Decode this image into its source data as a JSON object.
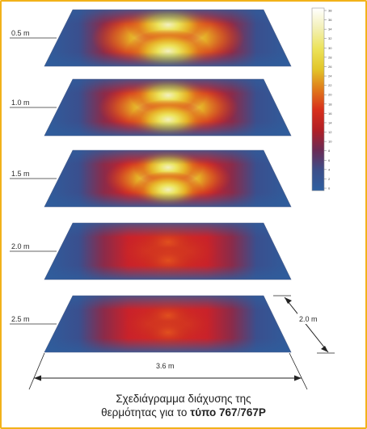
{
  "diagram": {
    "layers": [
      {
        "height": "0.5 m",
        "hot": 1.0
      },
      {
        "height": "1.0 m",
        "hot": 0.85
      },
      {
        "height": "1.5 m",
        "hot": 0.7
      },
      {
        "height": "2.0 m",
        "hot": 0.4
      },
      {
        "height": "2.5 m",
        "hot": 0.3
      }
    ],
    "dimensions": {
      "width": "3.6 m",
      "depth": "2.0 m"
    },
    "scale": {
      "ticks": [
        "38",
        "36",
        "34",
        "32",
        "30",
        "28",
        "26",
        "24",
        "22",
        "20",
        "18",
        "16",
        "14",
        "12",
        "10",
        "8",
        "6",
        "4",
        "2",
        "0"
      ],
      "colors": [
        "#ffffff",
        "#f3f0b5",
        "#ece35a",
        "#e2c62a",
        "#e07a1b",
        "#d8301c",
        "#b21f25",
        "#6b2b55",
        "#3c4f8a",
        "#2e5fa0"
      ]
    }
  },
  "caption": {
    "line1": "Σχεδιάγραμμα διάχυσης της",
    "line2_prefix": "θερμότητας για το ",
    "line2_bold1": "τύπο 767",
    "line2_sep": "/",
    "line2_bold2": "767P"
  }
}
